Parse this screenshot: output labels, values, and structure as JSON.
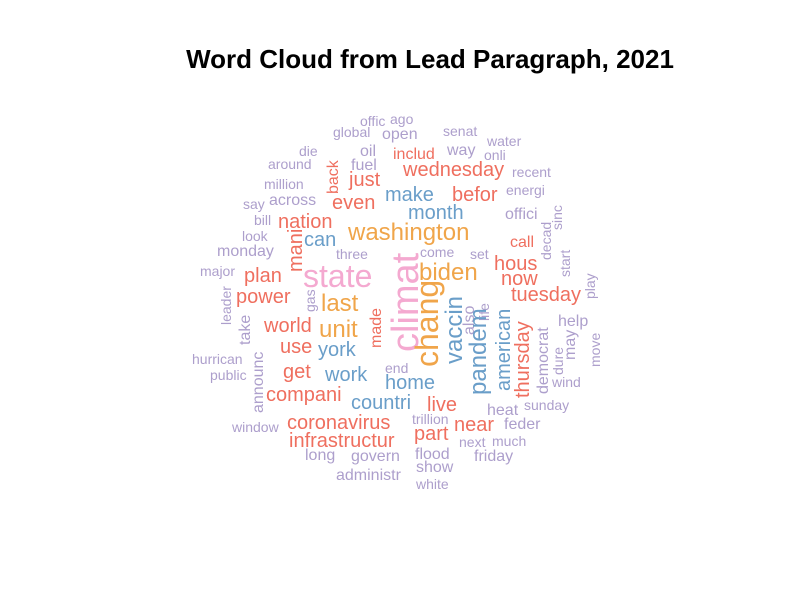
{
  "chart_data": {
    "type": "wordcloud",
    "title": "Word Cloud from Lead Paragraph, 2021",
    "palette": {
      "pink": "#f4a9d0",
      "orange": "#f0a54a",
      "blue": "#6a9ec9",
      "red": "#ef6f5f",
      "lavender": "#ad9fcc"
    },
    "words": [
      {
        "text": "offic",
        "color": "lavender",
        "size": "s"
      },
      {
        "text": "ago",
        "color": "lavender",
        "size": "s"
      },
      {
        "text": "global",
        "color": "lavender",
        "size": "s"
      },
      {
        "text": "open",
        "color": "lavender",
        "size": "m"
      },
      {
        "text": "senat",
        "color": "lavender",
        "size": "s"
      },
      {
        "text": "water",
        "color": "lavender",
        "size": "s"
      },
      {
        "text": "die",
        "color": "lavender",
        "size": "s"
      },
      {
        "text": "oil",
        "color": "lavender",
        "size": "m"
      },
      {
        "text": "includ",
        "color": "red",
        "size": "m"
      },
      {
        "text": "way",
        "color": "lavender",
        "size": "m"
      },
      {
        "text": "onli",
        "color": "lavender",
        "size": "s"
      },
      {
        "text": "around",
        "color": "lavender",
        "size": "s"
      },
      {
        "text": "back",
        "color": "red",
        "size": "m"
      },
      {
        "text": "fuel",
        "color": "lavender",
        "size": "m"
      },
      {
        "text": "wednesday",
        "color": "red",
        "size": "l"
      },
      {
        "text": "recent",
        "color": "lavender",
        "size": "s"
      },
      {
        "text": "million",
        "color": "lavender",
        "size": "s"
      },
      {
        "text": "just",
        "color": "red",
        "size": "l"
      },
      {
        "text": "energi",
        "color": "lavender",
        "size": "s"
      },
      {
        "text": "make",
        "color": "blue",
        "size": "l"
      },
      {
        "text": "befor",
        "color": "red",
        "size": "l"
      },
      {
        "text": "say",
        "color": "lavender",
        "size": "s"
      },
      {
        "text": "across",
        "color": "lavender",
        "size": "m"
      },
      {
        "text": "even",
        "color": "red",
        "size": "l"
      },
      {
        "text": "month",
        "color": "blue",
        "size": "l"
      },
      {
        "text": "offici",
        "color": "lavender",
        "size": "m"
      },
      {
        "text": "bill",
        "color": "lavender",
        "size": "s"
      },
      {
        "text": "nation",
        "color": "red",
        "size": "l"
      },
      {
        "text": "sinc",
        "color": "lavender",
        "size": "s"
      },
      {
        "text": "look",
        "color": "lavender",
        "size": "s"
      },
      {
        "text": "can",
        "color": "blue",
        "size": "l"
      },
      {
        "text": "washington",
        "color": "orange",
        "size": "xl"
      },
      {
        "text": "call",
        "color": "red",
        "size": "m"
      },
      {
        "text": "decad",
        "color": "lavender",
        "size": "s"
      },
      {
        "text": "monday",
        "color": "lavender",
        "size": "m"
      },
      {
        "text": "mani",
        "color": "red",
        "size": "l"
      },
      {
        "text": "three",
        "color": "lavender",
        "size": "s"
      },
      {
        "text": "come",
        "color": "lavender",
        "size": "s"
      },
      {
        "text": "set",
        "color": "lavender",
        "size": "s"
      },
      {
        "text": "hous",
        "color": "red",
        "size": "l"
      },
      {
        "text": "start",
        "color": "lavender",
        "size": "s"
      },
      {
        "text": "major",
        "color": "lavender",
        "size": "s"
      },
      {
        "text": "plan",
        "color": "red",
        "size": "l"
      },
      {
        "text": "state",
        "color": "pink",
        "size": "xxl"
      },
      {
        "text": "biden",
        "color": "orange",
        "size": "xl"
      },
      {
        "text": "now",
        "color": "red",
        "size": "l"
      },
      {
        "text": "play",
        "color": "lavender",
        "size": "s"
      },
      {
        "text": "leader",
        "color": "lavender",
        "size": "s"
      },
      {
        "text": "power",
        "color": "red",
        "size": "l"
      },
      {
        "text": "gas",
        "color": "lavender",
        "size": "s"
      },
      {
        "text": "last",
        "color": "orange",
        "size": "xl"
      },
      {
        "text": "climat",
        "color": "pink",
        "size": "xxxl"
      },
      {
        "text": "tuesday",
        "color": "red",
        "size": "l"
      },
      {
        "text": "also",
        "color": "lavender",
        "size": "m"
      },
      {
        "text": "life",
        "color": "lavender",
        "size": "s"
      },
      {
        "text": "take",
        "color": "lavender",
        "size": "m"
      },
      {
        "text": "chang",
        "color": "orange",
        "size": "xxl"
      },
      {
        "text": "vaccin",
        "color": "blue",
        "size": "xl"
      },
      {
        "text": "help",
        "color": "lavender",
        "size": "m"
      },
      {
        "text": "world",
        "color": "red",
        "size": "l"
      },
      {
        "text": "unit",
        "color": "orange",
        "size": "xl"
      },
      {
        "text": "made",
        "color": "red",
        "size": "m"
      },
      {
        "text": "pandem",
        "color": "blue",
        "size": "xl"
      },
      {
        "text": "american",
        "color": "blue",
        "size": "l"
      },
      {
        "text": "democrat",
        "color": "lavender",
        "size": "m"
      },
      {
        "text": "dure",
        "color": "lavender",
        "size": "s"
      },
      {
        "text": "may",
        "color": "lavender",
        "size": "m"
      },
      {
        "text": "move",
        "color": "lavender",
        "size": "s"
      },
      {
        "text": "use",
        "color": "red",
        "size": "l"
      },
      {
        "text": "york",
        "color": "blue",
        "size": "l"
      },
      {
        "text": "thursday",
        "color": "red",
        "size": "l"
      },
      {
        "text": "hurrican",
        "color": "lavender",
        "size": "s"
      },
      {
        "text": "announc",
        "color": "lavender",
        "size": "m"
      },
      {
        "text": "end",
        "color": "lavender",
        "size": "s"
      },
      {
        "text": "get",
        "color": "red",
        "size": "l"
      },
      {
        "text": "work",
        "color": "blue",
        "size": "l"
      },
      {
        "text": "public",
        "color": "lavender",
        "size": "s"
      },
      {
        "text": "home",
        "color": "blue",
        "size": "l"
      },
      {
        "text": "wind",
        "color": "lavender",
        "size": "s"
      },
      {
        "text": "compani",
        "color": "red",
        "size": "l"
      },
      {
        "text": "countri",
        "color": "blue",
        "size": "l"
      },
      {
        "text": "live",
        "color": "red",
        "size": "l"
      },
      {
        "text": "heat",
        "color": "lavender",
        "size": "m"
      },
      {
        "text": "sunday",
        "color": "lavender",
        "size": "s"
      },
      {
        "text": "trillion",
        "color": "lavender",
        "size": "s"
      },
      {
        "text": "window",
        "color": "lavender",
        "size": "s"
      },
      {
        "text": "coronavirus",
        "color": "red",
        "size": "l"
      },
      {
        "text": "near",
        "color": "red",
        "size": "l"
      },
      {
        "text": "feder",
        "color": "lavender",
        "size": "m"
      },
      {
        "text": "part",
        "color": "red",
        "size": "l"
      },
      {
        "text": "infrastructur",
        "color": "red",
        "size": "l"
      },
      {
        "text": "next",
        "color": "lavender",
        "size": "s"
      },
      {
        "text": "much",
        "color": "lavender",
        "size": "s"
      },
      {
        "text": "long",
        "color": "lavender",
        "size": "m"
      },
      {
        "text": "govern",
        "color": "lavender",
        "size": "m"
      },
      {
        "text": "flood",
        "color": "lavender",
        "size": "m"
      },
      {
        "text": "friday",
        "color": "lavender",
        "size": "m"
      },
      {
        "text": "show",
        "color": "lavender",
        "size": "m"
      },
      {
        "text": "administr",
        "color": "lavender",
        "size": "m"
      },
      {
        "text": "white",
        "color": "lavender",
        "size": "s"
      }
    ]
  }
}
